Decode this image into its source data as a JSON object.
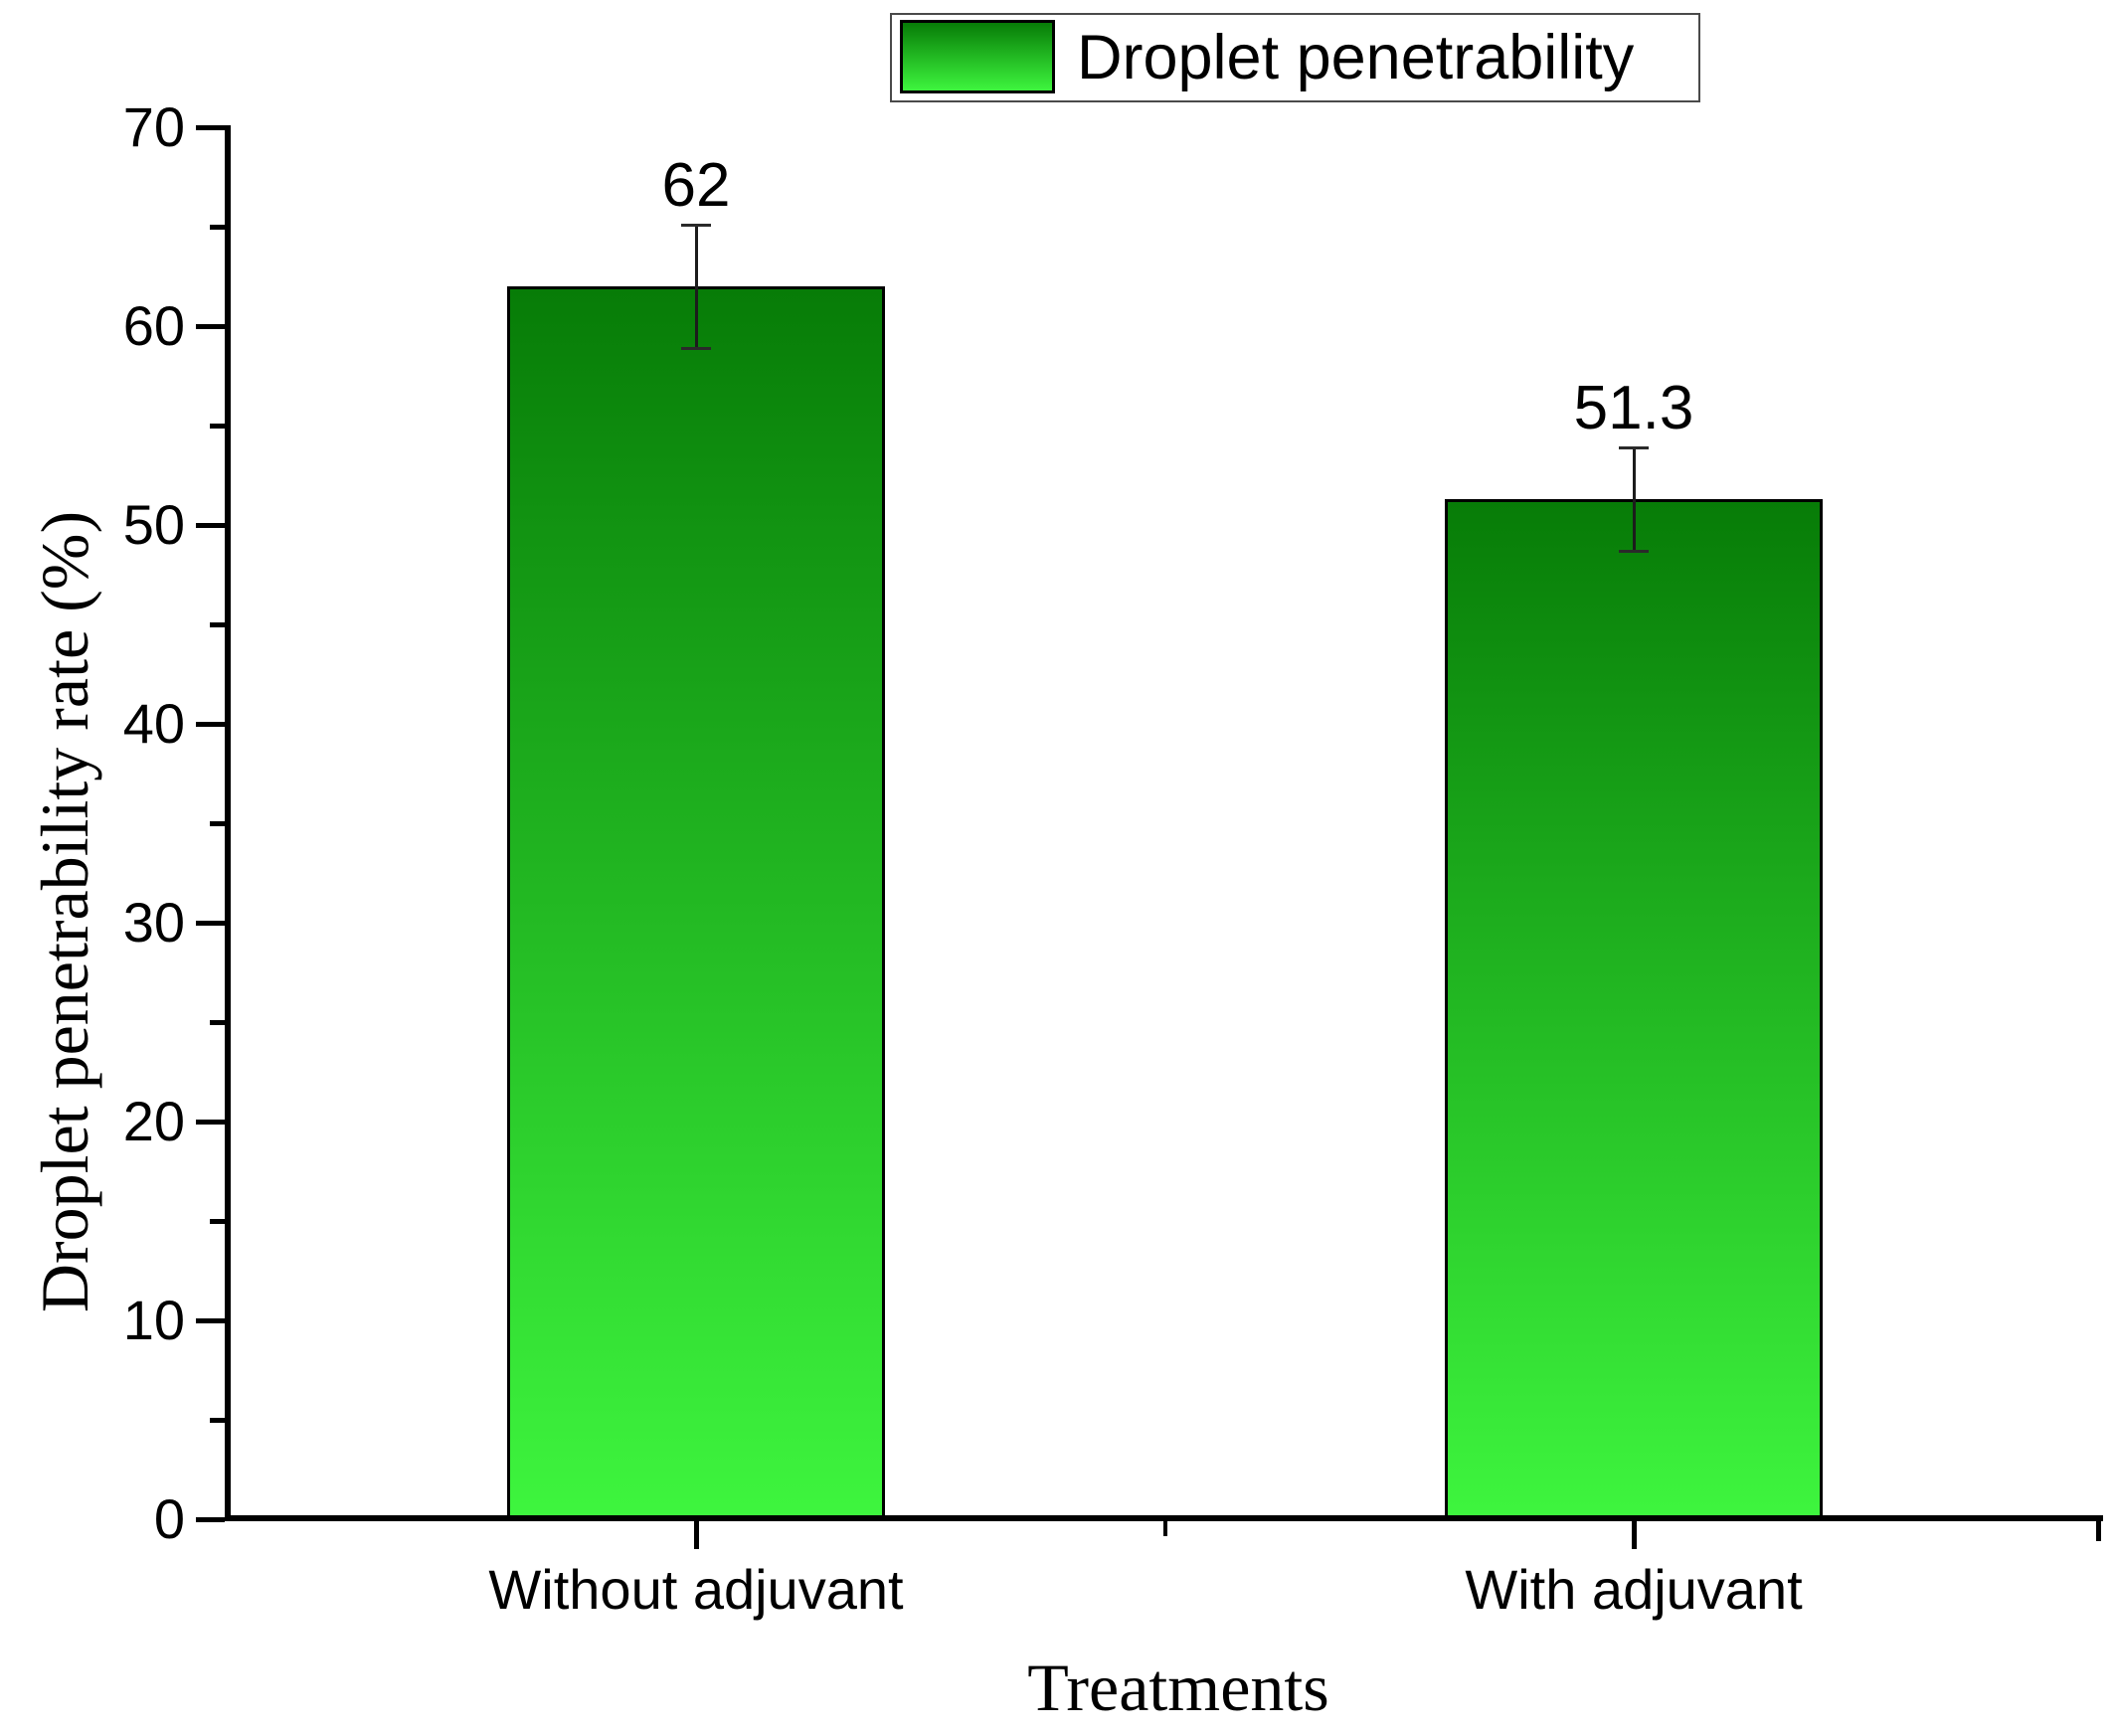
{
  "legend": {
    "label": "Droplet penetrability"
  },
  "chart_data": {
    "type": "bar",
    "title": "",
    "categories": [
      "Without adjuvant",
      "With adjuvant"
    ],
    "values": [
      62,
      51.3
    ],
    "value_labels": [
      "62",
      "51.3"
    ],
    "errors": [
      3.1,
      2.6
    ],
    "xlabel": "Treatments",
    "ylabel": "Droplet penetrability rate (%)",
    "ylim": [
      0,
      70
    ],
    "y_tick_step": 10,
    "y_minor_tick_step": 5,
    "y_ticks": [
      0,
      10,
      20,
      30,
      40,
      50,
      60,
      70
    ],
    "grid": false,
    "legend_position": "top-center",
    "legend_entries": [
      "Droplet penetrability"
    ],
    "colors": {
      "bar_fill_top": "#077c07",
      "bar_fill_bottom": "#3ef53e",
      "bar_border": "#000000",
      "axis": "#000000",
      "error_bar": "#1c1c1c"
    }
  }
}
